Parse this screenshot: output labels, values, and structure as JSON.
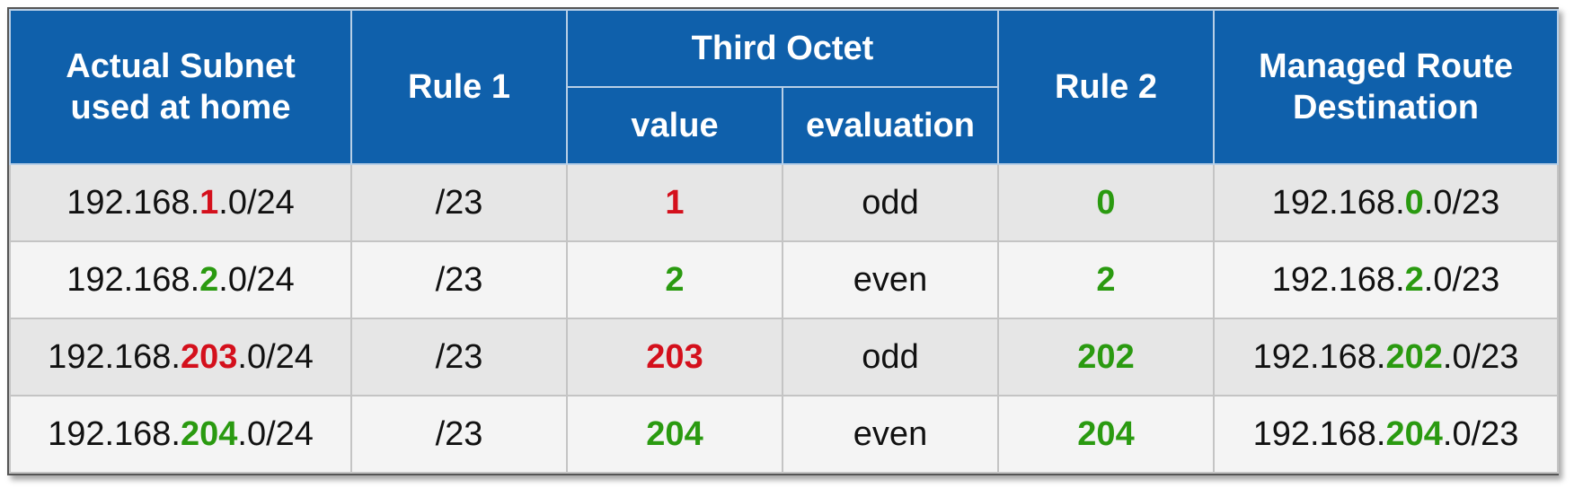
{
  "colors": {
    "header_bg": "#0f60ab",
    "odd_highlight": "#d4101c",
    "even_highlight": "#2a9a10"
  },
  "header": {
    "col1": "Actual Subnet used at home",
    "col1_line1": "Actual Subnet",
    "col1_line2": "used at home",
    "rule1": "Rule 1",
    "third_octet": "Third Octet",
    "value": "value",
    "evaluation": "evaluation",
    "rule2": "Rule 2",
    "dest_line1": "Managed Route",
    "dest_line2": "Destination"
  },
  "rows": [
    {
      "subnet_prefix": "192.168.",
      "subnet_octet": "1",
      "subnet_suffix": ".0/24",
      "octet_color": "red",
      "rule1": "/23",
      "value": "1",
      "evaluation": "odd",
      "rule2": "0",
      "dest_prefix": "192.168.",
      "dest_octet": "0",
      "dest_suffix": ".0/23"
    },
    {
      "subnet_prefix": "192.168.",
      "subnet_octet": "2",
      "subnet_suffix": ".0/24",
      "octet_color": "green",
      "rule1": "/23",
      "value": "2",
      "evaluation": "even",
      "rule2": "2",
      "dest_prefix": "192.168.",
      "dest_octet": "2",
      "dest_suffix": ".0/23"
    },
    {
      "subnet_prefix": "192.168.",
      "subnet_octet": "203",
      "subnet_suffix": ".0/24",
      "octet_color": "red",
      "rule1": "/23",
      "value": "203",
      "evaluation": "odd",
      "rule2": "202",
      "dest_prefix": "192.168.",
      "dest_octet": "202",
      "dest_suffix": ".0/23"
    },
    {
      "subnet_prefix": "192.168.",
      "subnet_octet": "204",
      "subnet_suffix": ".0/24",
      "octet_color": "green",
      "rule1": "/23",
      "value": "204",
      "evaluation": "even",
      "rule2": "204",
      "dest_prefix": "192.168.",
      "dest_octet": "204",
      "dest_suffix": ".0/23"
    }
  ]
}
